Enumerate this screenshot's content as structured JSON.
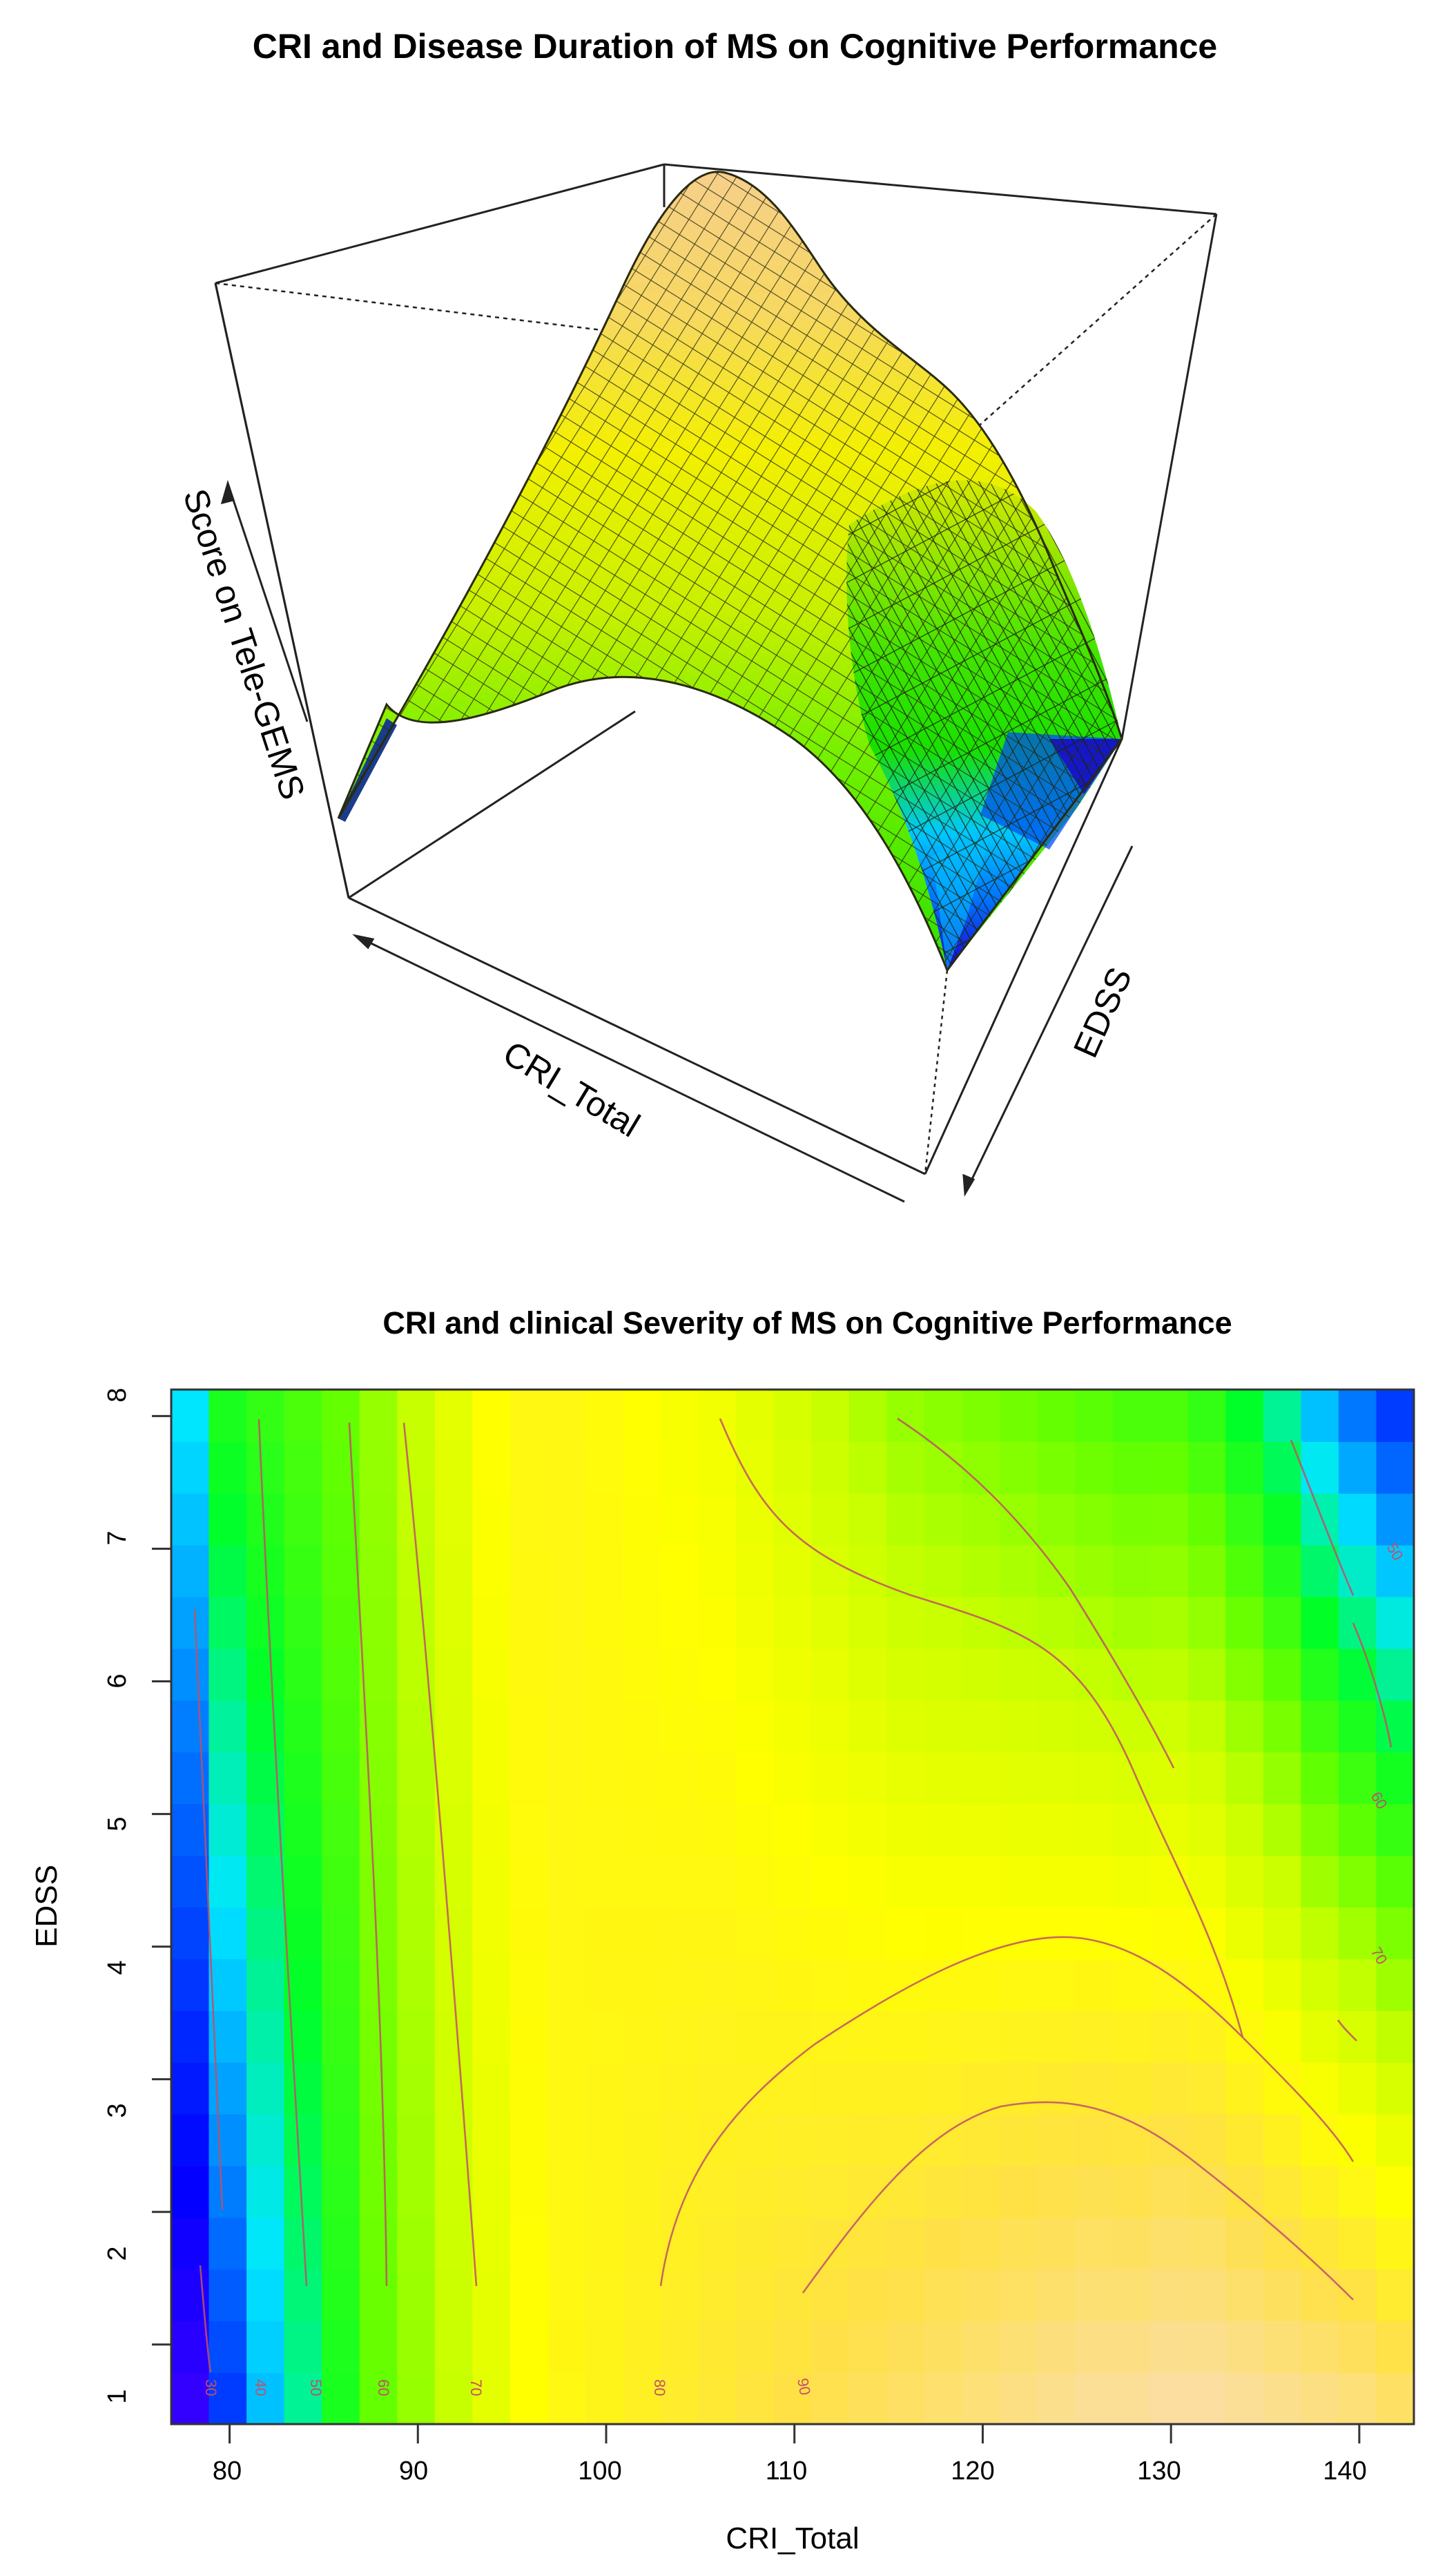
{
  "chart_data": [
    {
      "type": "surface3d",
      "title": "CRI and Disease Duration of MS on Cognitive Performance",
      "xlabel": "CRI_Total",
      "ylabel": "EDSS",
      "zlabel": "Score on Tele-GEMS",
      "axis_ticks_shown": false,
      "colormap": [
        "#5a00ff",
        "#0000ff",
        "#0080ff",
        "#00e5ff",
        "#00ff20",
        "#66ff00",
        "#ccff00",
        "#ffff00",
        "#ffe040",
        "#fad89a"
      ],
      "description": "Perspective mesh surface: peak (orange) at mid-high CRI and low EDSS, falling to blue at the extreme CRI edges and high EDSS corner"
    },
    {
      "type": "heatmap",
      "title": "CRI and clinical Severity of MS on Cognitive Performance",
      "xlabel": "CRI_Total",
      "ylabel": "EDSS",
      "xlim": [
        76.9,
        142.9
      ],
      "ylim": [
        0.4,
        8.2
      ],
      "x_ticks": [
        80,
        90,
        100,
        110,
        120,
        130,
        140
      ],
      "y_ticks": [
        1,
        2,
        3,
        4,
        5,
        6,
        7,
        8
      ],
      "grid": false,
      "contour_levels": [
        30,
        40,
        50,
        60,
        70,
        80,
        90
      ],
      "contour_color": "#c0506a",
      "x_centers": [
        78,
        80,
        82,
        84,
        86,
        88,
        90,
        92,
        94,
        96,
        98,
        100,
        102,
        104,
        106,
        108,
        110,
        112,
        114,
        116,
        118,
        120,
        122,
        124,
        126,
        128,
        130,
        132,
        134,
        136,
        138,
        140,
        142
      ],
      "column_value_profile_low_edss": [
        28,
        36,
        44,
        50,
        56,
        62,
        66,
        70,
        74,
        78,
        80,
        81,
        82,
        83,
        84,
        85,
        86,
        87,
        88,
        89,
        90,
        91,
        92,
        93,
        94,
        94,
        95,
        95,
        94,
        93,
        92,
        91,
        89
      ],
      "column_value_profile_high_edss": [
        46,
        56,
        58,
        60,
        62,
        66,
        70,
        74,
        78,
        80,
        80,
        79,
        78,
        77,
        76,
        74,
        72,
        70,
        68,
        66,
        65,
        64,
        63,
        62,
        61,
        60,
        60,
        58,
        54,
        50,
        44,
        40,
        36
      ]
    }
  ],
  "plot1": {
    "title": "CRI and Disease Duration of MS on Cognitive Performance",
    "x_axis_label": "CRI_Total",
    "y_axis_label": "EDSS",
    "z_axis_label": "Score on Tele-GEMS"
  },
  "plot2": {
    "title": "CRI and clinical Severity of MS on Cognitive Performance",
    "x_axis_label": "CRI_Total",
    "y_axis_label": "EDSS",
    "x_ticks": [
      "80",
      "90",
      "100",
      "110",
      "120",
      "130",
      "140"
    ],
    "y_ticks": [
      "1",
      "2",
      "3",
      "4",
      "5",
      "6",
      "7",
      "8"
    ],
    "contour_labels": [
      "30",
      "40",
      "50",
      "60",
      "70",
      "80",
      "90",
      "50",
      "60",
      "70"
    ]
  }
}
